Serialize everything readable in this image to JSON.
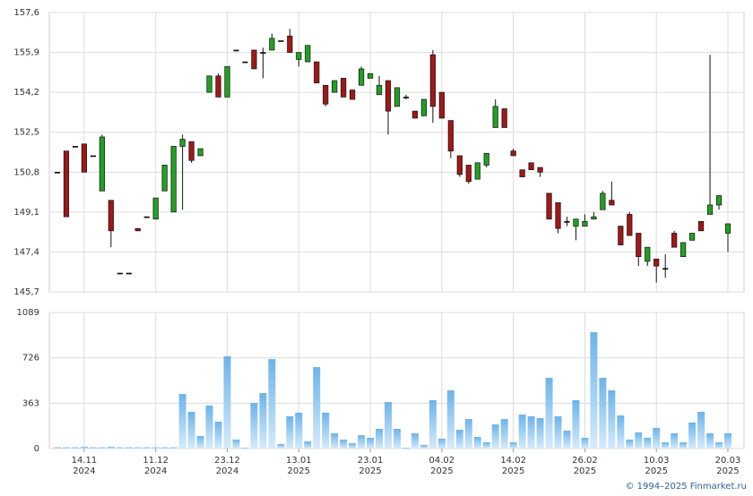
{
  "chart_data": [
    {
      "type": "candlestick",
      "up_color": "#22a022",
      "down_color": "#a01818",
      "ylim": [
        145.7,
        157.6
      ],
      "yticks": [
        {
          "value": 145.7,
          "label": "145,7"
        },
        {
          "value": 147.4,
          "label": "147,4"
        },
        {
          "value": 149.1,
          "label": "149,1"
        },
        {
          "value": 150.8,
          "label": "150,8"
        },
        {
          "value": 152.5,
          "label": "152,5"
        },
        {
          "value": 154.2,
          "label": "154,2"
        },
        {
          "value": 155.9,
          "label": "155,9"
        },
        {
          "value": 157.6,
          "label": "157,6"
        }
      ],
      "grid": true,
      "open": [
        150.8,
        151.7,
        151.9,
        152.0,
        151.5,
        150.0,
        149.6,
        146.5,
        146.5,
        148.4,
        148.9,
        148.8,
        150.0,
        149.1,
        151.9,
        152.1,
        151.5,
        154.2,
        154.9,
        154.0,
        156.0,
        155.5,
        156.0,
        155.9,
        156.0,
        156.4,
        156.6,
        155.6,
        155.5,
        155.5,
        154.5,
        154.2,
        154.8,
        154.3,
        154.5,
        154.8,
        154.1,
        154.7,
        153.6,
        154.0,
        153.4,
        153.2,
        155.8,
        154.2,
        153.0,
        151.5,
        151.1,
        150.5,
        151.1,
        152.7,
        153.5,
        151.7,
        150.9,
        151.2,
        151.0,
        149.9,
        149.5,
        148.7,
        148.5,
        148.5,
        148.8,
        149.2,
        149.6,
        148.5,
        149.0,
        148.2,
        147.0,
        147.1,
        146.7,
        148.2,
        147.2,
        147.9,
        148.7,
        149.0,
        149.4,
        148.2
      ],
      "high": [
        150.8,
        151.7,
        151.9,
        152.0,
        151.5,
        152.4,
        149.6,
        146.5,
        146.5,
        148.4,
        148.9,
        149.7,
        151.1,
        151.9,
        152.4,
        152.1,
        151.8,
        154.9,
        155.0,
        155.3,
        156.0,
        155.5,
        156.0,
        156.1,
        156.7,
        156.4,
        156.9,
        155.9,
        156.2,
        155.5,
        154.5,
        154.7,
        154.8,
        154.3,
        155.3,
        155.0,
        154.9,
        154.7,
        154.4,
        154.1,
        153.4,
        153.9,
        156.0,
        154.2,
        153.0,
        151.5,
        151.1,
        151.2,
        151.6,
        153.9,
        153.5,
        151.8,
        150.9,
        151.2,
        151.0,
        149.9,
        149.5,
        148.9,
        148.8,
        149.0,
        149.1,
        150.0,
        150.4,
        148.5,
        149.1,
        148.2,
        147.6,
        147.1,
        147.3,
        148.3,
        147.8,
        148.2,
        148.7,
        155.8,
        149.8,
        148.6
      ],
      "low": [
        150.8,
        148.9,
        151.9,
        150.8,
        151.5,
        150.0,
        147.6,
        146.5,
        146.5,
        148.3,
        148.9,
        148.8,
        150.0,
        149.1,
        149.2,
        151.2,
        151.5,
        154.2,
        154.0,
        154.0,
        156.0,
        155.5,
        155.2,
        154.8,
        156.0,
        156.4,
        155.9,
        155.3,
        155.5,
        154.6,
        153.6,
        154.2,
        154.0,
        153.9,
        154.5,
        154.8,
        154.1,
        152.4,
        153.6,
        153.9,
        153.1,
        153.2,
        152.9,
        153.1,
        151.4,
        150.6,
        150.3,
        150.5,
        151.0,
        152.7,
        152.7,
        151.5,
        150.6,
        150.9,
        150.6,
        148.8,
        148.2,
        148.5,
        147.9,
        148.5,
        148.8,
        149.2,
        149.4,
        147.7,
        148.1,
        146.8,
        146.8,
        146.1,
        146.3,
        147.6,
        147.2,
        147.9,
        148.3,
        149.0,
        149.2,
        147.4
      ],
      "close": [
        150.8,
        148.9,
        151.9,
        150.8,
        151.5,
        152.3,
        148.3,
        146.5,
        146.5,
        148.3,
        148.9,
        149.7,
        151.1,
        151.9,
        152.2,
        151.3,
        151.8,
        154.9,
        154.0,
        155.3,
        156.0,
        155.5,
        155.2,
        155.9,
        156.5,
        156.4,
        155.9,
        155.9,
        156.2,
        154.6,
        153.7,
        154.7,
        154.0,
        153.9,
        155.2,
        155.0,
        154.5,
        153.4,
        154.4,
        154.0,
        153.1,
        153.9,
        153.6,
        153.1,
        151.7,
        150.7,
        150.4,
        151.2,
        151.6,
        153.6,
        152.7,
        151.5,
        150.6,
        150.9,
        150.8,
        148.8,
        148.4,
        148.7,
        148.8,
        148.7,
        148.9,
        149.9,
        149.4,
        147.7,
        148.1,
        147.2,
        147.6,
        146.8,
        146.7,
        147.6,
        147.8,
        148.2,
        148.3,
        149.4,
        149.8,
        148.6
      ]
    },
    {
      "type": "bar",
      "color": "#8cc4ee",
      "ylim": [
        0,
        1089
      ],
      "yticks": [
        0,
        363,
        726,
        1089
      ],
      "grid": true,
      "categories": [
        null,
        null,
        null,
        {
          "date": "14.11",
          "year": "2024"
        },
        null,
        null,
        null,
        null,
        null,
        null,
        null,
        {
          "date": "11.12",
          "year": "2024"
        },
        null,
        null,
        null,
        null,
        null,
        null,
        null,
        {
          "date": "23.12",
          "year": "2024"
        },
        null,
        null,
        null,
        null,
        null,
        null,
        null,
        {
          "date": "13.01",
          "year": "2025"
        },
        null,
        null,
        null,
        null,
        null,
        null,
        null,
        {
          "date": "23.01",
          "year": "2025"
        },
        null,
        null,
        null,
        null,
        null,
        null,
        null,
        {
          "date": "04.02",
          "year": "2025"
        },
        null,
        null,
        null,
        null,
        null,
        null,
        null,
        {
          "date": "14.02",
          "year": "2025"
        },
        null,
        null,
        null,
        null,
        null,
        null,
        null,
        {
          "date": "26.02",
          "year": "2025"
        },
        null,
        null,
        null,
        null,
        null,
        null,
        null,
        {
          "date": "10.03",
          "year": "2025"
        },
        null,
        null,
        null,
        null,
        null,
        null,
        null,
        {
          "date": "20.03",
          "year": "2025"
        }
      ],
      "values": [
        10,
        10,
        10,
        15,
        10,
        10,
        15,
        10,
        10,
        10,
        10,
        10,
        10,
        10,
        437,
        294,
        100,
        344,
        215,
        738,
        72,
        7,
        365,
        444,
        716,
        36,
        258,
        287,
        57,
        652,
        287,
        122,
        72,
        43,
        107,
        86,
        158,
        372,
        158,
        7,
        122,
        29,
        387,
        79,
        466,
        150,
        236,
        93,
        50,
        193,
        236,
        50,
        272,
        258,
        244,
        566,
        258,
        143,
        387,
        86,
        931,
        566,
        466,
        265,
        72,
        129,
        86,
        165,
        50,
        122,
        50,
        208,
        294,
        122,
        50,
        122
      ]
    }
  ],
  "footer": "© 1994–2025 Finmarket.ru"
}
